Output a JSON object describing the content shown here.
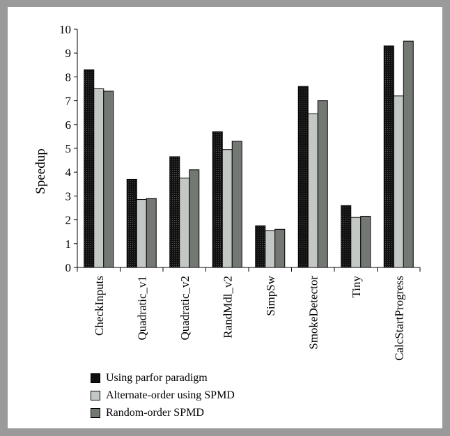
{
  "chart_data": {
    "type": "bar",
    "title": "",
    "xlabel": "",
    "ylabel": "Speedup",
    "ylim": [
      0,
      10
    ],
    "yticks": [
      0,
      1,
      2,
      3,
      4,
      5,
      6,
      7,
      8,
      9,
      10
    ],
    "grid": false,
    "legend_position": "bottom-left",
    "categories": [
      "CheckInputs",
      "Quadratic_v1",
      "Quadratic_v2",
      "RandMdl_v2",
      "SimpSw",
      "SmokeDetector",
      "Tiny",
      "CalcStartProgress"
    ],
    "series": [
      {
        "name": "Using parfor paradigm",
        "color": "#111111",
        "values": [
          8.3,
          3.7,
          4.65,
          5.7,
          1.75,
          7.6,
          2.6,
          9.3
        ]
      },
      {
        "name": "Alternate-order using SPMD",
        "color": "#c4c8c4",
        "values": [
          7.5,
          2.85,
          3.75,
          4.95,
          1.55,
          6.45,
          2.1,
          7.2
        ]
      },
      {
        "name": "Random-order SPMD",
        "color": "#737873",
        "values": [
          7.4,
          2.9,
          4.1,
          5.3,
          1.6,
          7.0,
          2.15,
          9.5
        ]
      }
    ]
  }
}
